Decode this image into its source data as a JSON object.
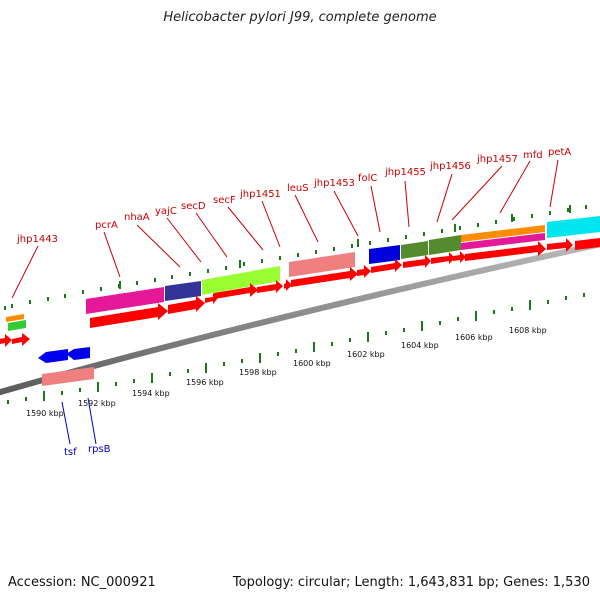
{
  "title": "Helicobacter pylori J99, complete genome",
  "footer": {
    "accession": "Accession: NC_000921",
    "topology": "Topology: circular; Length: 1,643,831 bp; Genes: 1,530"
  },
  "scale_labels": [
    "1590 kbp",
    "1592 kbp",
    "1594 kbp",
    "1596 kbp",
    "1598 kbp",
    "1600 kbp",
    "1602 kbp",
    "1604 kbp",
    "1606 kbp",
    "1608 kbp"
  ],
  "forward_gene_labels": [
    "jhp1443",
    "pcrA",
    "nhaA",
    "yajC",
    "secD",
    "secF",
    "jhp1451",
    "leuS",
    "jhp1453",
    "folC",
    "jhp1455",
    "jhp1456",
    "jhp1457",
    "mfd",
    "petA"
  ],
  "reverse_gene_labels": [
    "tsf",
    "rpsB"
  ],
  "colors": {
    "forward_label": "#cc0000",
    "reverse_label": "#0000cc",
    "cds_arrow": "#ff0000",
    "backbone": "#888888",
    "tick": "#1a7a1a"
  }
}
